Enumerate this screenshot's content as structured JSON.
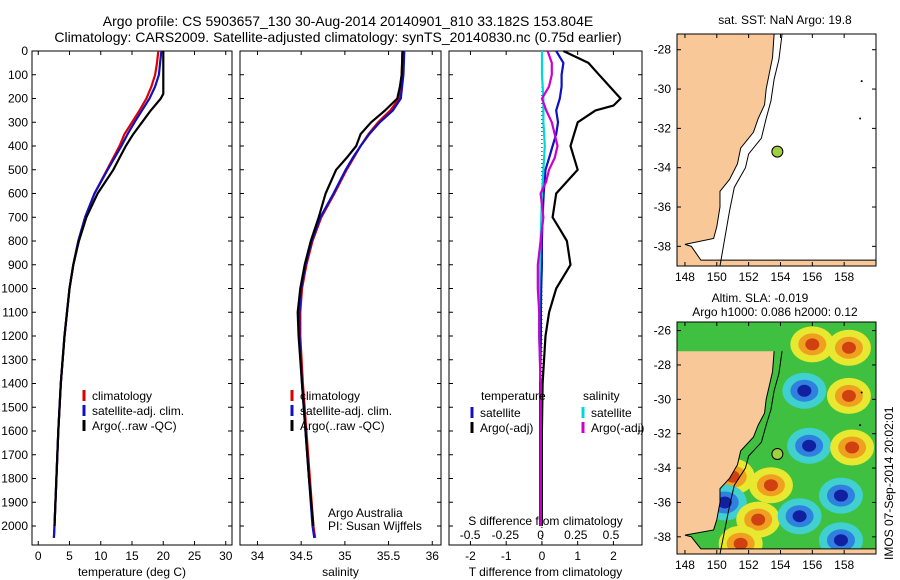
{
  "header": {
    "line1": "Argo profile: CS 5903657_130 30-Aug-2014 20140901_810 33.182S 153.804E",
    "line2": "Climatology: CARS2009. Satellite-adjusted climatology: synTS_20140830.nc (0.75d earlier)"
  },
  "credit": {
    "org": "Argo Australia",
    "pi": "PI: Susan Wijffels"
  },
  "footer_stamp": "IMOS 07-Sep-2014 20:02:01",
  "colors": {
    "climatology": "#dd0000",
    "satellite": "#1010c0",
    "argo": "#000000",
    "salinity_sat": "#00d8d8",
    "salinity_argo": "#cc00cc",
    "land": "#f8c898",
    "float_marker": "#a0d040"
  },
  "chart_data": [
    {
      "type": "line",
      "panel": "temperature",
      "xlabel": "temperature (deg C)",
      "ylabel": "",
      "xlim": [
        -1,
        31
      ],
      "ylim": [
        2080,
        0
      ],
      "grid": false,
      "xticks": [
        0,
        5,
        10,
        15,
        20,
        25,
        30
      ],
      "yticks": [
        0,
        100,
        200,
        300,
        400,
        500,
        600,
        700,
        800,
        900,
        1000,
        1100,
        1200,
        1300,
        1400,
        1500,
        1600,
        1700,
        1800,
        1900,
        2000
      ],
      "legend": {
        "placement": "center-left",
        "entries": [
          "climatology",
          "satellite-adj. clim.",
          "Argo(..raw -QC)"
        ]
      },
      "series": [
        {
          "name": "climatology",
          "color": "#dd0000",
          "depth": [
            0,
            50,
            100,
            150,
            200,
            250,
            300,
            350,
            400,
            500,
            600,
            700,
            800,
            900,
            1000,
            1200,
            1400,
            1600,
            1800,
            2000,
            2050
          ],
          "values": [
            19.2,
            19.0,
            18.7,
            18.1,
            17.3,
            16.2,
            15.0,
            13.8,
            13.0,
            11.0,
            9.0,
            7.5,
            6.4,
            5.6,
            5.0,
            4.2,
            3.6,
            3.2,
            2.9,
            2.6,
            2.5
          ]
        },
        {
          "name": "satellite-adj. clim.",
          "color": "#1010c0",
          "depth": [
            0,
            50,
            100,
            150,
            200,
            250,
            300,
            350,
            400,
            500,
            600,
            700,
            800,
            900,
            1000,
            1200,
            1400,
            1600,
            1800,
            2000,
            2050
          ],
          "values": [
            19.7,
            19.5,
            19.3,
            18.7,
            17.8,
            16.6,
            15.4,
            14.3,
            13.3,
            11.1,
            9.0,
            7.5,
            6.4,
            5.6,
            5.0,
            4.2,
            3.6,
            3.2,
            2.9,
            2.6,
            2.5
          ]
        },
        {
          "name": "Argo(..raw -QC)",
          "color": "#000000",
          "depth": [
            0,
            50,
            100,
            150,
            180,
            200,
            250,
            300,
            350,
            400,
            450,
            500,
            600,
            700,
            800,
            900,
            1000,
            1200,
            1400,
            1600,
            1800,
            2000
          ],
          "values": [
            20.0,
            20.0,
            20.0,
            20.0,
            20.0,
            19.6,
            18.0,
            16.6,
            15.2,
            14.0,
            13.0,
            12.0,
            9.5,
            7.7,
            6.5,
            5.6,
            5.0,
            4.2,
            3.6,
            3.2,
            2.9,
            2.6
          ]
        }
      ]
    },
    {
      "type": "line",
      "panel": "salinity",
      "xlabel": "salinity",
      "ylabel": "",
      "xlim": [
        33.8,
        36.1
      ],
      "ylim": [
        2080,
        0
      ],
      "grid": false,
      "xticks": [
        34,
        34.5,
        35,
        35.5,
        36
      ],
      "legend": {
        "placement": "center-left",
        "entries": [
          "climatology",
          "satellite-adj. clim.",
          "Argo(..raw -QC)"
        ]
      },
      "series": [
        {
          "name": "climatology",
          "color": "#dd0000",
          "depth": [
            0,
            100,
            200,
            250,
            300,
            350,
            400,
            450,
            500,
            550,
            600,
            700,
            800,
            900,
            1000,
            1100,
            1200,
            1400,
            1600,
            1800,
            2000,
            2050
          ],
          "values": [
            35.66,
            35.65,
            35.62,
            35.52,
            35.38,
            35.27,
            35.18,
            35.1,
            35.02,
            34.95,
            34.88,
            34.73,
            34.63,
            34.56,
            34.51,
            34.49,
            34.49,
            34.52,
            34.56,
            34.6,
            34.64,
            34.66
          ]
        },
        {
          "name": "satellite-adj. clim.",
          "color": "#1010c0",
          "depth": [
            0,
            100,
            200,
            250,
            300,
            350,
            400,
            450,
            500,
            550,
            600,
            700,
            800,
            900,
            1000,
            1100,
            1200,
            1400,
            1600,
            1800,
            2000,
            2050
          ],
          "values": [
            35.68,
            35.67,
            35.64,
            35.55,
            35.4,
            35.28,
            35.18,
            35.09,
            35.01,
            34.94,
            34.87,
            34.72,
            34.62,
            34.55,
            34.5,
            34.48,
            34.48,
            34.51,
            34.55,
            34.59,
            34.63,
            34.65
          ]
        },
        {
          "name": "Argo(..raw -QC)",
          "color": "#000000",
          "depth": [
            0,
            100,
            150,
            200,
            250,
            300,
            350,
            400,
            450,
            500,
            600,
            700,
            800,
            900,
            1000,
            1100,
            1200,
            1400,
            1600,
            1800,
            2000
          ],
          "values": [
            35.66,
            35.65,
            35.63,
            35.6,
            35.46,
            35.3,
            35.18,
            35.13,
            35.02,
            34.9,
            34.78,
            34.7,
            34.61,
            34.54,
            34.49,
            34.46,
            34.47,
            34.51,
            34.55,
            34.59,
            34.64
          ]
        }
      ]
    },
    {
      "type": "line",
      "panel": "difference",
      "xlabel": "T difference from climatology",
      "x2label": "S difference from climatology",
      "xlim": [
        -2.6,
        2.8
      ],
      "ylim": [
        2080,
        0
      ],
      "grid": false,
      "xticks": [
        -2,
        -1,
        0,
        1,
        2
      ],
      "x2ticks": [
        -0.5,
        -0.25,
        0,
        0.25,
        0.5
      ],
      "legend": {
        "placement": "center",
        "groups": [
          {
            "title": "temperature",
            "entries": [
              "satellite",
              "Argo(-adj)"
            ]
          },
          {
            "title": "salinity",
            "entries": [
              "satellite",
              "Argo(-adj)"
            ]
          }
        ]
      },
      "series": [
        {
          "name": "satellite",
          "group": "temperature",
          "color": "#1010c0",
          "depth": [
            0,
            50,
            100,
            150,
            200,
            250,
            300,
            350,
            400,
            450,
            500,
            600,
            700,
            800,
            900,
            1000,
            1100,
            1200,
            1400,
            1600,
            1800,
            2000
          ],
          "values": [
            0.4,
            0.6,
            0.55,
            0.55,
            0.5,
            0.4,
            0.45,
            0.4,
            0.3,
            0.2,
            0.1,
            0.05,
            0.02,
            0.0,
            0.0,
            -0.02,
            -0.03,
            -0.03,
            -0.05,
            -0.05,
            -0.05,
            -0.05
          ]
        },
        {
          "name": "Argo(-adj)",
          "group": "temperature",
          "color": "#000000",
          "depth": [
            0,
            50,
            100,
            150,
            200,
            230,
            250,
            300,
            350,
            400,
            450,
            500,
            550,
            600,
            700,
            750,
            800,
            900,
            1000,
            1100,
            1200,
            1400,
            1600,
            1800,
            2000
          ],
          "values": [
            0.6,
            1.3,
            1.6,
            1.9,
            2.2,
            2.0,
            1.5,
            1.0,
            0.9,
            0.8,
            0.9,
            1.0,
            0.7,
            0.4,
            0.3,
            0.5,
            0.7,
            0.8,
            0.4,
            0.2,
            0.1,
            0.02,
            0.0,
            0.0,
            0.0
          ]
        },
        {
          "name": "satellite",
          "group": "salinity",
          "color": "#00d8d8",
          "depth": [
            0,
            100,
            200,
            300,
            400,
            500,
            600,
            800,
            1000,
            1200,
            1400,
            1600,
            1800,
            2000
          ],
          "values": [
            0.01,
            0.01,
            0.02,
            0.02,
            0.03,
            0.02,
            0.01,
            0.0,
            -0.01,
            -0.01,
            0.0,
            0.0,
            0.0,
            0.0
          ]
        },
        {
          "name": "Argo(-adj)",
          "group": "salinity",
          "color": "#cc00cc",
          "depth": [
            0,
            50,
            100,
            150,
            200,
            250,
            300,
            350,
            400,
            450,
            500,
            550,
            600,
            700,
            800,
            900,
            1000,
            1100,
            1200,
            1400,
            1600,
            1800,
            2000
          ],
          "values": [
            0.05,
            0.08,
            0.08,
            0.06,
            0.01,
            0.04,
            0.08,
            0.1,
            0.12,
            0.1,
            0.06,
            0.04,
            0.0,
            0.02,
            0.0,
            -0.02,
            -0.02,
            -0.01,
            -0.01,
            0.0,
            0.0,
            0.0,
            0.0
          ]
        }
      ]
    },
    {
      "type": "map",
      "panel": "sst",
      "title": "sat. SST: NaN Argo: 19.8",
      "xlim": [
        147.5,
        160
      ],
      "ylim": [
        -39,
        -27.2
      ],
      "xticks": [
        148,
        150,
        152,
        154,
        156,
        158
      ],
      "yticks": [
        -28,
        -30,
        -32,
        -34,
        -36,
        -38
      ],
      "float": {
        "lon": 153.804,
        "lat": -33.182
      }
    },
    {
      "type": "heatmap",
      "panel": "sla",
      "title_line1": "Altim. SLA: -0.019",
      "title_line2": "Argo h1000: 0.086 h2000: 0.12",
      "xlim": [
        147.5,
        160
      ],
      "ylim": [
        -39,
        -25.5
      ],
      "xticks": [
        148,
        150,
        152,
        154,
        156,
        158
      ],
      "yticks": [
        -26,
        -28,
        -30,
        -32,
        -34,
        -36,
        -38
      ],
      "float": {
        "lon": 153.804,
        "lat": -33.182
      },
      "eddies": [
        {
          "lon": 156.0,
          "lat": -26.8,
          "sign": 1
        },
        {
          "lon": 158.3,
          "lat": -27.0,
          "sign": 1
        },
        {
          "lon": 155.5,
          "lat": -29.5,
          "sign": -1
        },
        {
          "lon": 158.3,
          "lat": -29.8,
          "sign": 1
        },
        {
          "lon": 155.8,
          "lat": -32.7,
          "sign": -1
        },
        {
          "lon": 158.5,
          "lat": -32.8,
          "sign": 1
        },
        {
          "lon": 151.0,
          "lat": -34.5,
          "sign": 1
        },
        {
          "lon": 153.4,
          "lat": -35.0,
          "sign": 1
        },
        {
          "lon": 150.5,
          "lat": -36.0,
          "sign": -1
        },
        {
          "lon": 152.6,
          "lat": -37.0,
          "sign": 1
        },
        {
          "lon": 155.2,
          "lat": -36.8,
          "sign": -1
        },
        {
          "lon": 157.8,
          "lat": -35.6,
          "sign": -1
        },
        {
          "lon": 151.5,
          "lat": -38.4,
          "sign": 1
        },
        {
          "lon": 157.8,
          "lat": -38.2,
          "sign": -1
        }
      ]
    }
  ]
}
